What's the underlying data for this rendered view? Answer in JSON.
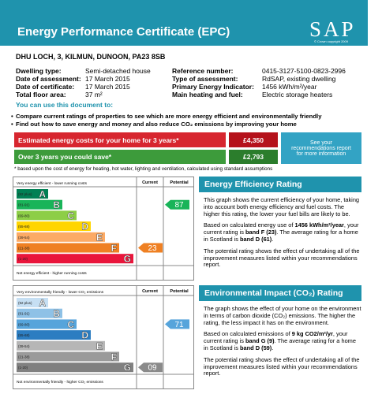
{
  "header": {
    "title": "Energy Performance Certificate (EPC)",
    "logo": "SAP",
    "logo_note": "© Crown copyright 2009"
  },
  "address": "DHU LOCH, 3, KILMUN, DUNOON, PA23 8SB",
  "details": [
    [
      "Dwelling type:",
      "Semi-detached house"
    ],
    [
      "Date of assessment:",
      "17 March 2015"
    ],
    [
      "Date of certificate:",
      "17 March 2015"
    ],
    [
      "Total floor area:",
      "37 m²"
    ],
    [
      "Reference number:",
      "0415-3127-5100-0823-2996"
    ],
    [
      "Type of assessment:",
      "RdSAP, existing dwelling"
    ],
    [
      "Primary Energy Indicator:",
      "1456 kWh/m²/year"
    ],
    [
      "Main heating and fuel:",
      "Electric storage heaters"
    ]
  ],
  "uses": {
    "heading": "You can use this document to:",
    "items": [
      "Compare current ratings of properties to see which are more energy efficient and environmentally friendly",
      "Find out how to save energy and money and also reduce CO₂ emissions by improving your home"
    ]
  },
  "costs": {
    "rows": [
      [
        "Estimated energy costs for your home for 3 years*",
        "£4,350"
      ],
      [
        "Over 3 years you could save*",
        "£2,793"
      ]
    ],
    "note": "See your recommendations report for more information",
    "footnote": "* based upon the cost of energy for heating, hot water, lighting and ventilation, calculated using standard assumptions"
  },
  "efficiency": {
    "top": "Very energy efficient - lower running costs",
    "bottom": "Not energy efficient - higher running costs",
    "current_header": "Current",
    "potential_header": "Potential",
    "bands": [
      [
        "(92 plus)",
        "A"
      ],
      [
        "(81-91)",
        "B"
      ],
      [
        "(69-80)",
        "C"
      ],
      [
        "(55-68)",
        "D"
      ],
      [
        "(39-54)",
        "E"
      ],
      [
        "(21-38)",
        "F"
      ],
      [
        "(1-20)",
        "G"
      ]
    ],
    "current": "23",
    "potential": "87",
    "heading": "Energy Efficiency Rating",
    "paragraphs": [
      [
        "This graph shows the current efficiency of your home, taking into account both energy efficiency and fuel costs. The higher this rating, the lower your fuel bills are likely to be."
      ],
      [
        "Based on calculated energy use of ",
        "1456 kWh/m²/year",
        ", your current rating is ",
        "band F (23)",
        ". The average rating for a home in Scotland is ",
        "band D (61)",
        "."
      ],
      [
        "The potential rating shows the effect of undertaking all of the improvement measures listed within your recommendations report."
      ]
    ]
  },
  "environmental": {
    "top": "Very environmentally friendly - lower CO₂ emissions",
    "bottom": "Not environmentally friendly - higher CO₂ emissions",
    "current_header": "Current",
    "potential_header": "Potential",
    "bands": [
      [
        "(92 plus)",
        "A"
      ],
      [
        "(81-91)",
        "B"
      ],
      [
        "(69-80)",
        "C"
      ],
      [
        "(55-68)",
        "D"
      ],
      [
        "(39-54)",
        "E"
      ],
      [
        "(21-38)",
        "F"
      ],
      [
        "(1-20)",
        "G"
      ]
    ],
    "current": "09",
    "potential": "71",
    "heading": "Environmental Impact (CO₂) Rating",
    "paragraphs": [
      [
        "The graph shows the effect of your home on the environment in terms of carbon dioxide (CO₂) emissions. The higher the rating, the less impact it has on the environment."
      ],
      [
        "Based on calculated emissions of ",
        "9 kg CO2/m²/yr",
        ", your current rating is ",
        "band G (9)",
        ". The average rating for a home in Scotland is ",
        "band D (59)",
        "."
      ],
      [
        "The potential rating shows the effect of undertaking all of the improvement measures listed within your recommendations report."
      ]
    ]
  }
}
